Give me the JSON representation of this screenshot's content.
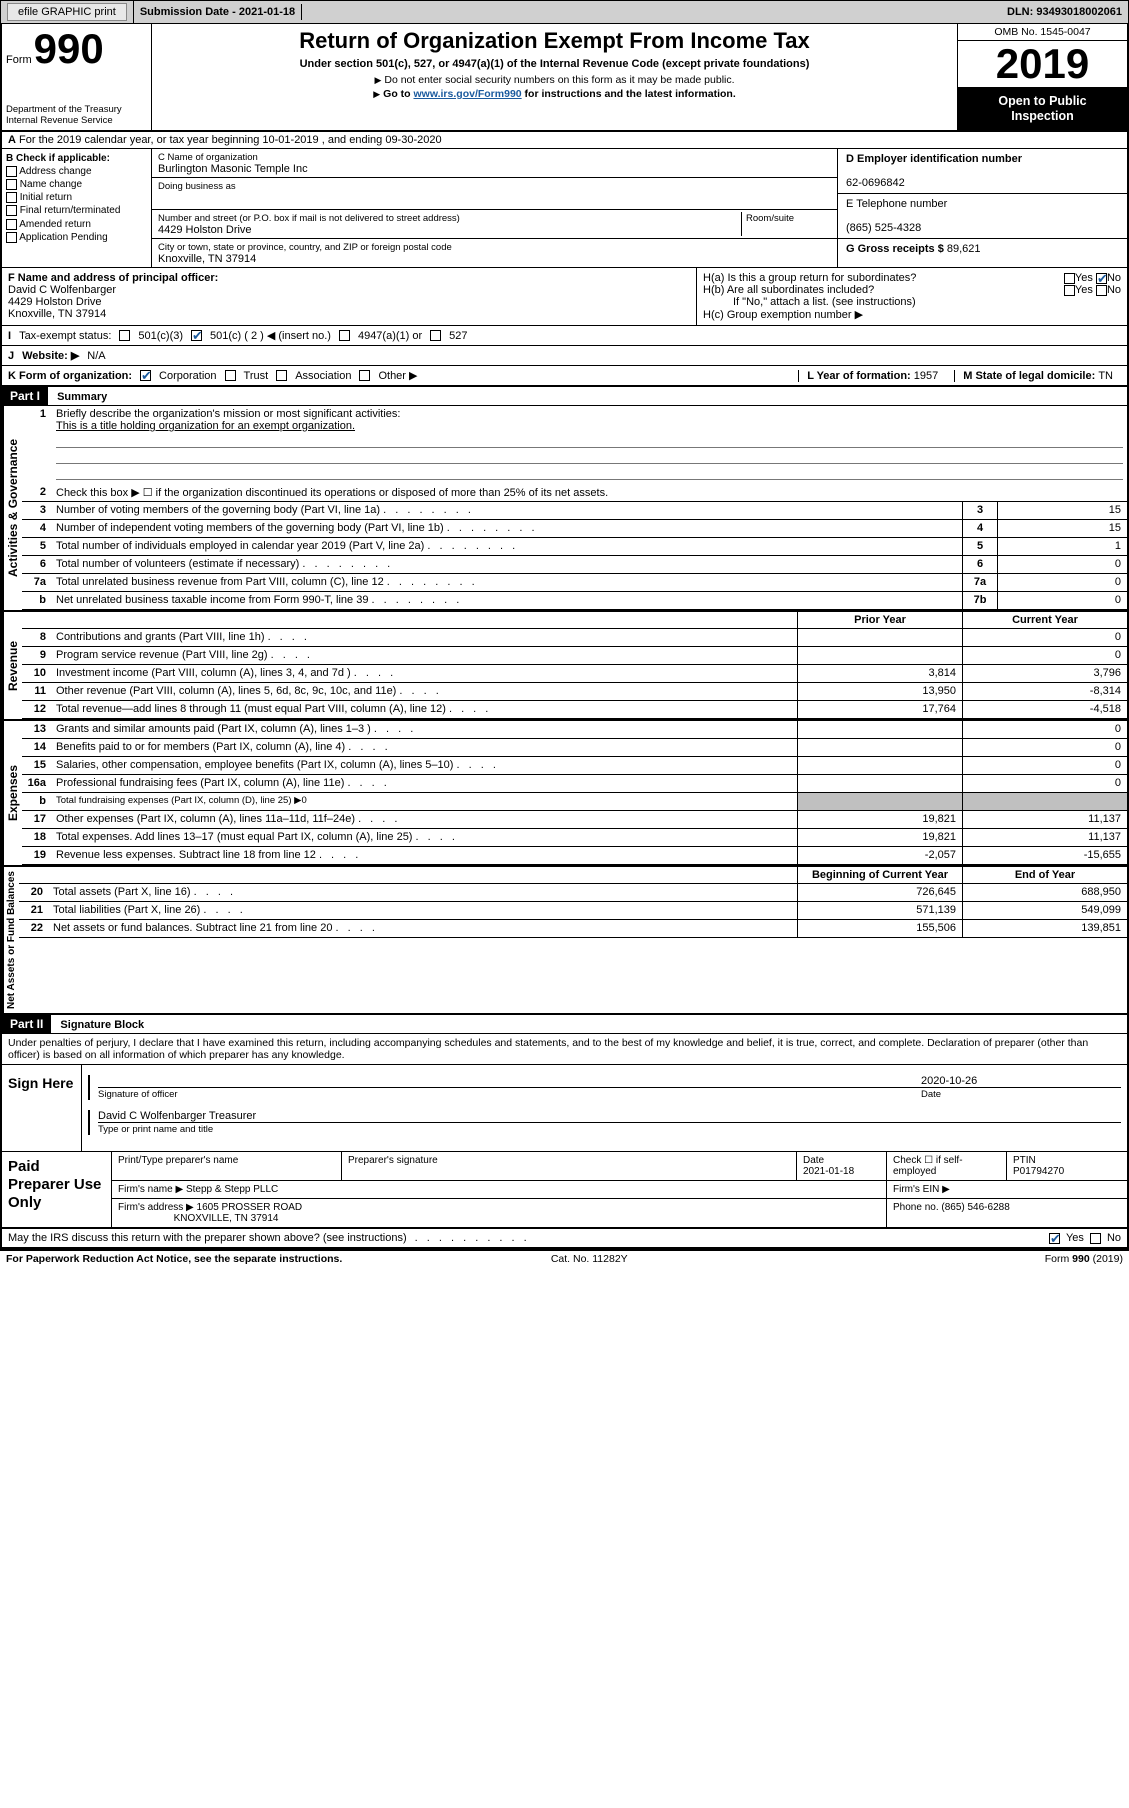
{
  "topbar": {
    "efile": "efile GRAPHIC print",
    "sub_date_label": "Submission Date - ",
    "sub_date": "2021-01-18",
    "dln_label": "DLN: ",
    "dln": "93493018002061"
  },
  "header": {
    "form_word": "Form",
    "form_no": "990",
    "dept1": "Department of the Treasury",
    "dept2": "Internal Revenue Service",
    "title": "Return of Organization Exempt From Income Tax",
    "subtitle": "Under section 501(c), 527, or 4947(a)(1) of the Internal Revenue Code (except private foundations)",
    "note1": "Do not enter social security numbers on this form as it may be made public.",
    "note2_pre": "Go to ",
    "note2_link": "www.irs.gov/Form990",
    "note2_post": " for instructions and the latest information.",
    "omb": "OMB No. 1545-0047",
    "year": "2019",
    "public1": "Open to Public",
    "public2": "Inspection"
  },
  "A": {
    "text": "For the 2019 calendar year, or tax year beginning 10-01-2019    , and ending 09-30-2020"
  },
  "B": {
    "label": "B Check if applicable:",
    "opts": [
      "Address change",
      "Name change",
      "Initial return",
      "Final return/terminated",
      "Amended return",
      "Application Pending"
    ]
  },
  "C": {
    "name_label": "C Name of organization",
    "name": "Burlington Masonic Temple Inc",
    "dba_label": "Doing business as",
    "street_label": "Number and street (or P.O. box if mail is not delivered to street address)",
    "room_label": "Room/suite",
    "street": "4429 Holston Drive",
    "city_label": "City or town, state or province, country, and ZIP or foreign postal code",
    "city": "Knoxville, TN  37914"
  },
  "D": {
    "label": "D Employer identification number",
    "val": "62-0696842"
  },
  "E": {
    "label": "E Telephone number",
    "val": "(865) 525-4328"
  },
  "G": {
    "label": "G Gross receipts $ ",
    "val": "89,621"
  },
  "F": {
    "label": "F  Name and address of principal officer:",
    "name": "David C Wolfenbarger",
    "street": "4429 Holston Drive",
    "city": "Knoxville, TN  37914"
  },
  "H": {
    "a": "H(a)  Is this a group return for subordinates?",
    "b": "H(b)  Are all subordinates included?",
    "b_note": "If \"No,\" attach a list. (see instructions)",
    "c": "H(c)  Group exemption number ▶",
    "yes": "Yes",
    "no": "No"
  },
  "I": {
    "label": "Tax-exempt status:",
    "o1": "501(c)(3)",
    "o2": "501(c) ( 2 ) ◀ (insert no.)",
    "o3": "4947(a)(1) or",
    "o4": "527"
  },
  "J": {
    "label": "Website: ▶",
    "val": "N/A"
  },
  "K": {
    "label": "K Form of organization:",
    "corp": "Corporation",
    "trust": "Trust",
    "assoc": "Association",
    "other": "Other ▶"
  },
  "L": {
    "label": "L Year of formation: ",
    "val": "1957"
  },
  "M": {
    "label": "M State of legal domicile: ",
    "val": "TN"
  },
  "part1": {
    "hdr": "Part I",
    "title": "Summary",
    "vlabel1": "Activities & Governance",
    "vlabel2": "Revenue",
    "vlabel3": "Expenses",
    "vlabel4": "Net Assets or Fund Balances",
    "l1": "Briefly describe the organization's mission or most significant activities:",
    "l1v": "This is a title holding organization for an exempt organization.",
    "l2": "Check this box ▶ ☐  if the organization discontinued its operations or disposed of more than 25% of its net assets.",
    "rows_gov": [
      {
        "n": "3",
        "d": "Number of voting members of the governing body (Part VI, line 1a)",
        "b": "3",
        "v": "15"
      },
      {
        "n": "4",
        "d": "Number of independent voting members of the governing body (Part VI, line 1b)",
        "b": "4",
        "v": "15"
      },
      {
        "n": "5",
        "d": "Total number of individuals employed in calendar year 2019 (Part V, line 2a)",
        "b": "5",
        "v": "1"
      },
      {
        "n": "6",
        "d": "Total number of volunteers (estimate if necessary)",
        "b": "6",
        "v": "0"
      },
      {
        "n": "7a",
        "d": "Total unrelated business revenue from Part VIII, column (C), line 12",
        "b": "7a",
        "v": "0"
      },
      {
        "n": "b",
        "d": "Net unrelated business taxable income from Form 990-T, line 39",
        "b": "7b",
        "v": "0"
      }
    ],
    "col_prior": "Prior Year",
    "col_current": "Current Year",
    "rows_rev": [
      {
        "n": "8",
        "d": "Contributions and grants (Part VIII, line 1h)",
        "p": "",
        "c": "0"
      },
      {
        "n": "9",
        "d": "Program service revenue (Part VIII, line 2g)",
        "p": "",
        "c": "0"
      },
      {
        "n": "10",
        "d": "Investment income (Part VIII, column (A), lines 3, 4, and 7d )",
        "p": "3,814",
        "c": "3,796"
      },
      {
        "n": "11",
        "d": "Other revenue (Part VIII, column (A), lines 5, 6d, 8c, 9c, 10c, and 11e)",
        "p": "13,950",
        "c": "-8,314"
      },
      {
        "n": "12",
        "d": "Total revenue—add lines 8 through 11 (must equal Part VIII, column (A), line 12)",
        "p": "17,764",
        "c": "-4,518"
      }
    ],
    "rows_exp": [
      {
        "n": "13",
        "d": "Grants and similar amounts paid (Part IX, column (A), lines 1–3 )",
        "p": "",
        "c": "0"
      },
      {
        "n": "14",
        "d": "Benefits paid to or for members (Part IX, column (A), line 4)",
        "p": "",
        "c": "0"
      },
      {
        "n": "15",
        "d": "Salaries, other compensation, employee benefits (Part IX, column (A), lines 5–10)",
        "p": "",
        "c": "0"
      },
      {
        "n": "16a",
        "d": "Professional fundraising fees (Part IX, column (A), line 11e)",
        "p": "",
        "c": "0"
      }
    ],
    "l16b": "Total fundraising expenses (Part IX, column (D), line 25) ▶0",
    "rows_exp2": [
      {
        "n": "17",
        "d": "Other expenses (Part IX, column (A), lines 11a–11d, 11f–24e)",
        "p": "19,821",
        "c": "11,137"
      },
      {
        "n": "18",
        "d": "Total expenses. Add lines 13–17 (must equal Part IX, column (A), line 25)",
        "p": "19,821",
        "c": "11,137"
      },
      {
        "n": "19",
        "d": "Revenue less expenses. Subtract line 18 from line 12",
        "p": "-2,057",
        "c": "-15,655"
      }
    ],
    "col_begin": "Beginning of Current Year",
    "col_end": "End of Year",
    "rows_net": [
      {
        "n": "20",
        "d": "Total assets (Part X, line 16)",
        "p": "726,645",
        "c": "688,950"
      },
      {
        "n": "21",
        "d": "Total liabilities (Part X, line 26)",
        "p": "571,139",
        "c": "549,099"
      },
      {
        "n": "22",
        "d": "Net assets or fund balances. Subtract line 21 from line 20",
        "p": "155,506",
        "c": "139,851"
      }
    ]
  },
  "part2": {
    "hdr": "Part II",
    "title": "Signature Block",
    "decl": "Under penalties of perjury, I declare that I have examined this return, including accompanying schedules and statements, and to the best of my knowledge and belief, it is true, correct, and complete. Declaration of preparer (other than officer) is based on all information of which preparer has any knowledge."
  },
  "sign": {
    "label": "Sign Here",
    "sig_officer": "Signature of officer",
    "date_label": "Date",
    "date": "2020-10-26",
    "name": "David C Wolfenbarger  Treasurer",
    "name_label": "Type or print name and title"
  },
  "paid": {
    "label": "Paid Preparer Use Only",
    "h_name": "Print/Type preparer's name",
    "h_sig": "Preparer's signature",
    "h_date": "Date",
    "date": "2021-01-18",
    "check_label": "Check ☐ if self-employed",
    "ptin_label": "PTIN",
    "ptin": "P01794270",
    "firm_name_l": "Firm's name    ▶",
    "firm_name": "Stepp & Stepp PLLC",
    "firm_ein_l": "Firm's EIN ▶",
    "firm_addr_l": "Firm's address ▶",
    "firm_addr1": "1605 PROSSER ROAD",
    "firm_addr2": "KNOXVILLE, TN  37914",
    "phone_l": "Phone no. ",
    "phone": "(865) 546-6288"
  },
  "irs_discuss": {
    "q": "May the IRS discuss this return with the preparer shown above? (see instructions)",
    "yes": "Yes",
    "no": "No"
  },
  "footer": {
    "left": "For Paperwork Reduction Act Notice, see the separate instructions.",
    "mid": "Cat. No. 11282Y",
    "right": "Form 990 (2019)"
  }
}
